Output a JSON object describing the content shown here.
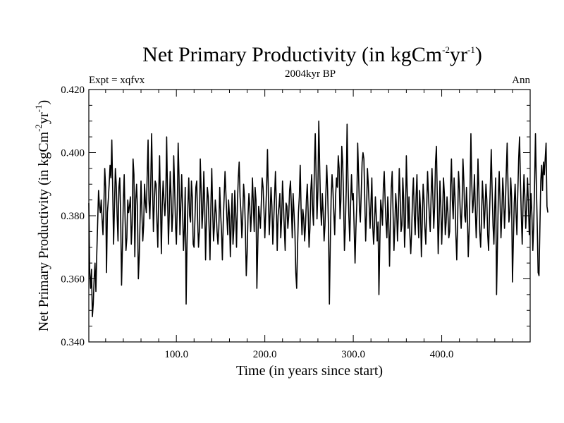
{
  "chart_data": {
    "type": "line",
    "title_main": "Net Primary Productivity (in kgCm",
    "title_sup1": "-2",
    "title_mid": "yr",
    "title_sup2": "-1",
    "title_end": ")",
    "subtitle": "2004kyr BP",
    "left_note": "Expt = xqfvx",
    "right_note": "Ann",
    "xlabel": "Time (in years since start)",
    "ylabel_main": "Net Primary Productivity (in kgCm",
    "ylabel_sup1": "-2",
    "ylabel_mid": "yr",
    "ylabel_sup2": "-1",
    "ylabel_end": ")",
    "xlim": [
      1,
      500
    ],
    "ylim": [
      0.34,
      0.42
    ],
    "x_ticks": [
      100,
      200,
      300,
      400
    ],
    "x_tick_labels": [
      "100.0",
      "200.0",
      "300.0",
      "400.0"
    ],
    "y_ticks": [
      0.34,
      0.36,
      0.38,
      0.4,
      0.42
    ],
    "y_tick_labels": [
      "0.340",
      "0.360",
      "0.380",
      "0.400",
      "0.420"
    ],
    "series": [
      {
        "name": "NPP",
        "color": "#000000",
        "x_start": 1,
        "x_step": 1,
        "values": [
          0.384,
          0.362,
          0.357,
          0.363,
          0.348,
          0.352,
          0.36,
          0.365,
          0.356,
          0.368,
          0.378,
          0.388,
          0.383,
          0.381,
          0.385,
          0.379,
          0.374,
          0.383,
          0.395,
          0.389,
          0.362,
          0.381,
          0.385,
          0.39,
          0.396,
          0.392,
          0.404,
          0.388,
          0.371,
          0.383,
          0.395,
          0.39,
          0.38,
          0.372,
          0.389,
          0.392,
          0.38,
          0.358,
          0.37,
          0.385,
          0.393,
          0.379,
          0.369,
          0.373,
          0.385,
          0.381,
          0.383,
          0.386,
          0.371,
          0.377,
          0.398,
          0.393,
          0.367,
          0.385,
          0.39,
          0.382,
          0.36,
          0.367,
          0.379,
          0.391,
          0.381,
          0.372,
          0.377,
          0.39,
          0.384,
          0.381,
          0.393,
          0.404,
          0.385,
          0.379,
          0.39,
          0.406,
          0.391,
          0.375,
          0.384,
          0.391,
          0.39,
          0.378,
          0.37,
          0.387,
          0.399,
          0.384,
          0.368,
          0.383,
          0.391,
          0.385,
          0.38,
          0.386,
          0.405,
          0.386,
          0.371,
          0.381,
          0.394,
          0.386,
          0.375,
          0.381,
          0.399,
          0.389,
          0.377,
          0.371,
          0.383,
          0.403,
          0.392,
          0.374,
          0.383,
          0.393,
          0.382,
          0.369,
          0.376,
          0.389,
          0.352,
          0.371,
          0.383,
          0.392,
          0.38,
          0.378,
          0.391,
          0.386,
          0.371,
          0.37,
          0.379,
          0.389,
          0.391,
          0.379,
          0.37,
          0.375,
          0.398,
          0.388,
          0.376,
          0.382,
          0.394,
          0.384,
          0.366,
          0.379,
          0.389,
          0.386,
          0.376,
          0.366,
          0.383,
          0.395,
          0.382,
          0.372,
          0.377,
          0.385,
          0.381,
          0.375,
          0.371,
          0.376,
          0.389,
          0.381,
          0.375,
          0.366,
          0.378,
          0.386,
          0.394,
          0.387,
          0.38,
          0.374,
          0.385,
          0.38,
          0.367,
          0.378,
          0.387,
          0.371,
          0.376,
          0.388,
          0.381,
          0.37,
          0.384,
          0.392,
          0.397,
          0.386,
          0.381,
          0.373,
          0.379,
          0.39,
          0.386,
          0.376,
          0.361,
          0.368,
          0.38,
          0.387,
          0.383,
          0.375,
          0.381,
          0.392,
          0.384,
          0.375,
          0.389,
          0.385,
          0.357,
          0.37,
          0.383,
          0.38,
          0.376,
          0.384,
          0.392,
          0.389,
          0.382,
          0.373,
          0.381,
          0.389,
          0.401,
          0.387,
          0.374,
          0.381,
          0.389,
          0.383,
          0.371,
          0.378,
          0.386,
          0.394,
          0.384,
          0.369,
          0.38,
          0.383,
          0.387,
          0.373,
          0.379,
          0.391,
          0.384,
          0.376,
          0.369,
          0.384,
          0.383,
          0.376,
          0.38,
          0.388,
          0.391,
          0.383,
          0.373,
          0.387,
          0.381,
          0.375,
          0.362,
          0.357,
          0.37,
          0.381,
          0.386,
          0.396,
          0.382,
          0.374,
          0.382,
          0.379,
          0.372,
          0.377,
          0.385,
          0.39,
          0.381,
          0.37,
          0.376,
          0.388,
          0.393,
          0.382,
          0.377,
          0.395,
          0.406,
          0.392,
          0.379,
          0.388,
          0.41,
          0.396,
          0.383,
          0.377,
          0.387,
          0.381,
          0.372,
          0.377,
          0.387,
          0.396,
          0.388,
          0.376,
          0.352,
          0.371,
          0.386,
          0.393,
          0.388,
          0.381,
          0.374,
          0.386,
          0.392,
          0.389,
          0.399,
          0.395,
          0.379,
          0.385,
          0.402,
          0.397,
          0.386,
          0.369,
          0.376,
          0.388,
          0.409,
          0.392,
          0.38,
          0.372,
          0.384,
          0.393,
          0.385,
          0.387,
          0.376,
          0.365,
          0.376,
          0.384,
          0.403,
          0.393,
          0.382,
          0.378,
          0.387,
          0.397,
          0.4,
          0.398,
          0.385,
          0.372,
          0.381,
          0.395,
          0.39,
          0.383,
          0.376,
          0.384,
          0.392,
          0.377,
          0.371,
          0.377,
          0.386,
          0.38,
          0.372,
          0.378,
          0.355,
          0.371,
          0.385,
          0.382,
          0.377,
          0.389,
          0.394,
          0.385,
          0.378,
          0.373,
          0.386,
          0.379,
          0.364,
          0.378,
          0.389,
          0.394,
          0.381,
          0.369,
          0.377,
          0.387,
          0.382,
          0.372,
          0.381,
          0.395,
          0.386,
          0.375,
          0.377,
          0.392,
          0.385,
          0.37,
          0.378,
          0.399,
          0.388,
          0.376,
          0.386,
          0.374,
          0.368,
          0.375,
          0.386,
          0.392,
          0.38,
          0.374,
          0.386,
          0.393,
          0.38,
          0.373,
          0.388,
          0.382,
          0.367,
          0.378,
          0.39,
          0.385,
          0.376,
          0.371,
          0.382,
          0.394,
          0.387,
          0.38,
          0.375,
          0.386,
          0.395,
          0.386,
          0.376,
          0.383,
          0.397,
          0.402,
          0.386,
          0.368,
          0.378,
          0.391,
          0.383,
          0.371,
          0.38,
          0.392,
          0.387,
          0.374,
          0.378,
          0.386,
          0.381,
          0.373,
          0.375,
          0.389,
          0.398,
          0.385,
          0.379,
          0.392,
          0.386,
          0.374,
          0.366,
          0.378,
          0.394,
          0.389,
          0.381,
          0.376,
          0.383,
          0.398,
          0.391,
          0.38,
          0.378,
          0.389,
          0.381,
          0.367,
          0.375,
          0.388,
          0.406,
          0.39,
          0.381,
          0.385,
          0.393,
          0.382,
          0.373,
          0.382,
          0.398,
          0.388,
          0.375,
          0.37,
          0.379,
          0.391,
          0.385,
          0.376,
          0.382,
          0.39,
          0.385,
          0.374,
          0.369,
          0.38,
          0.39,
          0.401,
          0.388,
          0.377,
          0.371,
          0.383,
          0.392,
          0.355,
          0.37,
          0.386,
          0.394,
          0.384,
          0.373,
          0.381,
          0.392,
          0.386,
          0.376,
          0.383,
          0.394,
          0.403,
          0.389,
          0.378,
          0.381,
          0.392,
          0.386,
          0.359,
          0.372,
          0.384,
          0.39,
          0.381,
          0.374,
          0.387,
          0.398,
          0.405,
          0.391,
          0.38,
          0.371,
          0.384,
          0.393,
          0.386,
          0.376,
          0.383,
          0.392,
          0.384,
          0.374,
          0.38,
          0.387,
          0.38,
          0.369,
          0.377,
          0.39,
          0.406,
          0.39,
          0.377,
          0.362,
          0.361,
          0.376,
          0.391,
          0.396,
          0.388,
          0.397,
          0.393,
          0.398,
          0.403,
          0.383,
          0.381
        ]
      }
    ]
  }
}
